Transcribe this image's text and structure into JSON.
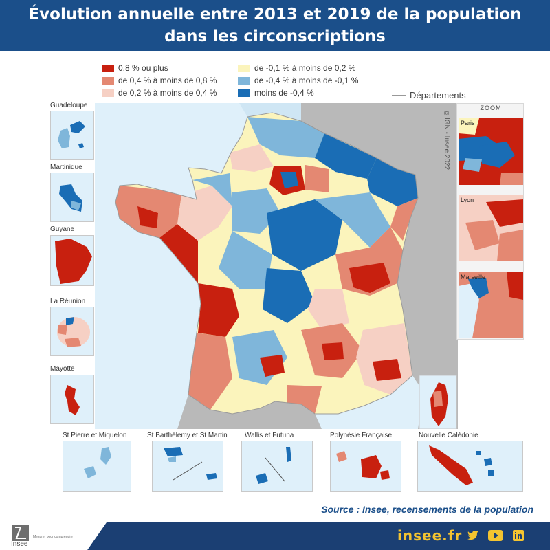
{
  "header": {
    "title_line1": "Évolution annuelle entre 2013 et 2019 de la population",
    "title_line2": "dans les circonscriptions"
  },
  "legend": {
    "items": [
      {
        "label": "0,8 % ou plus",
        "color": "#c8200f"
      },
      {
        "label": "de 0,4 % à moins de 0,8 %",
        "color": "#e48872"
      },
      {
        "label": "de 0,2 % à moins de 0,4 %",
        "color": "#f6d0c4"
      },
      {
        "label": "de -0,1 % à moins de 0,2 %",
        "color": "#fbf4bc"
      },
      {
        "label": "de -0,4 % à moins de -0,1 %",
        "color": "#7fb6da"
      },
      {
        "label": "moins de -0,4 %",
        "color": "#1a6db5"
      }
    ],
    "departements_label": "Départements"
  },
  "credit": "©IGN - Insee 2022",
  "insets_left": [
    {
      "label": "Guadeloupe"
    },
    {
      "label": "Martinique"
    },
    {
      "label": "Guyane"
    },
    {
      "label": "La Réunion"
    },
    {
      "label": "Mayotte"
    }
  ],
  "insets_bottom": [
    {
      "label": "St Pierre et Miquelon"
    },
    {
      "label": "St Barthélemy et St Martin"
    },
    {
      "label": "Wallis et Futuna"
    },
    {
      "label": "Polynésie Française"
    },
    {
      "label": "Nouvelle Calédonie"
    }
  ],
  "zoom": {
    "title": "ZOOM",
    "panels": [
      {
        "label": "Paris"
      },
      {
        "label": "Lyon"
      },
      {
        "label": "Marseille"
      }
    ]
  },
  "source": "Source : Insee, recensements de la population",
  "footer": {
    "logo_text": "Insee",
    "tagline": "Mesurer pour comprendre",
    "site": "insee.fr",
    "icons": [
      "twitter-icon",
      "youtube-icon",
      "linkedin-icon"
    ]
  },
  "colors": {
    "header_bg": "#1b4f8a",
    "footer_bg": "#1b3f73",
    "accent_yellow": "#f4c430",
    "sea": "#dff0fa",
    "foreign_land": "#b9b9b9"
  }
}
